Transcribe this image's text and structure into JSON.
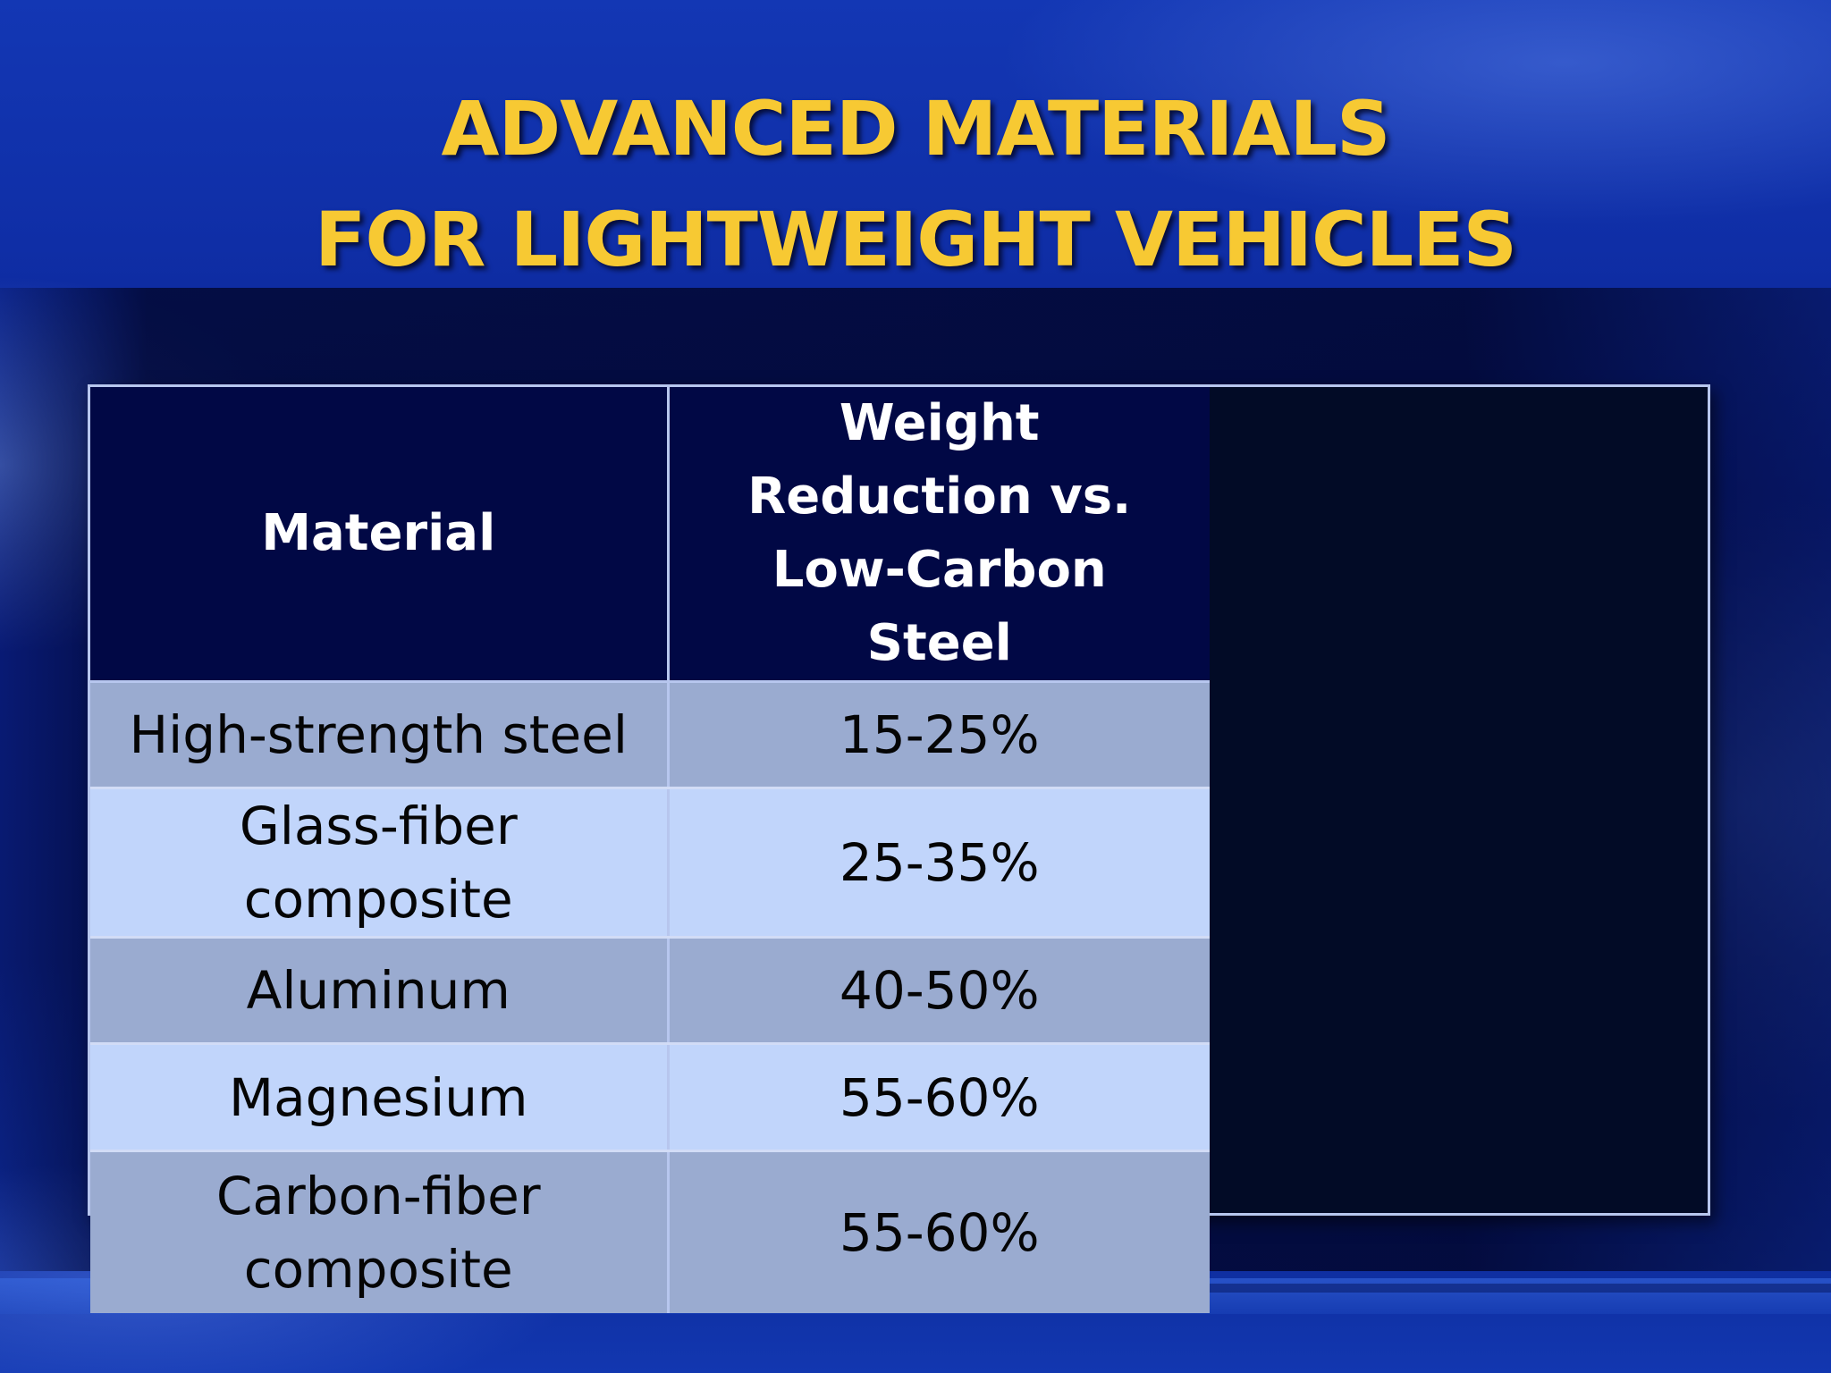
{
  "slide": {
    "title_lines": [
      "ADVANCED MATERIALS",
      "FOR LIGHTWEIGHT VEHICLES"
    ]
  },
  "table": {
    "headers": {
      "material": "Material",
      "reduction": "Weight Reduction vs. Low-Carbon Steel"
    },
    "rows": [
      {
        "material": "High-strength steel",
        "reduction": "15-25%"
      },
      {
        "material": "Glass-fiber composite",
        "reduction": "25-35%"
      },
      {
        "material": "Aluminum",
        "reduction": "40-50%"
      },
      {
        "material": "Magnesium",
        "reduction": "55-60%"
      },
      {
        "material": "Carbon-fiber composite",
        "reduction": "55-60%"
      }
    ]
  },
  "colors": {
    "title": "#f7c933",
    "header_bg": "#010845",
    "row_dark": "#9aabd0",
    "row_light": "#c1d5fb"
  }
}
